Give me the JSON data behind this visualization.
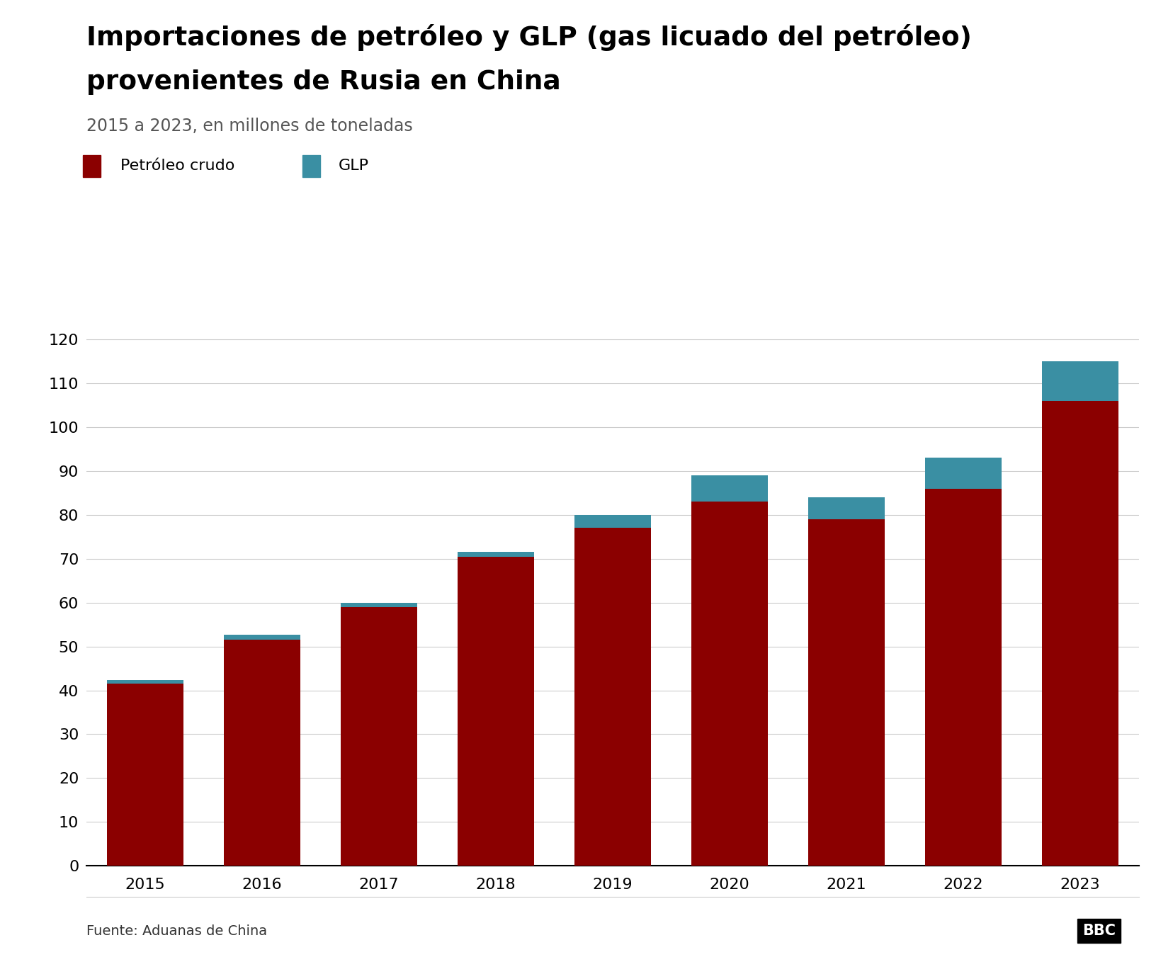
{
  "years": [
    "2015",
    "2016",
    "2017",
    "2018",
    "2019",
    "2020",
    "2021",
    "2022",
    "2023"
  ],
  "crude_oil": [
    41.5,
    51.5,
    59.0,
    70.5,
    77.0,
    83.0,
    79.0,
    86.0,
    106.0
  ],
  "glp": [
    0.8,
    1.2,
    1.0,
    1.0,
    3.0,
    6.0,
    5.0,
    7.0,
    9.0
  ],
  "crude_color": "#8B0000",
  "glp_color": "#3A8FA3",
  "title_line1": "Importaciones de petróleo y GLP (gas licuado del petróleo)",
  "title_line2": "provenientes de Rusia en China",
  "subtitle": "2015 a 2023, en millones de toneladas",
  "legend_crude": "Petróleo crudo",
  "legend_glp": "GLP",
  "ylabel_ticks": [
    0,
    10,
    20,
    30,
    40,
    50,
    60,
    70,
    80,
    90,
    100,
    110,
    120
  ],
  "ylim": [
    0,
    125
  ],
  "source": "Fuente: Aduanas de China",
  "bbc_text": "BBC",
  "background_color": "#FFFFFF",
  "title_fontsize": 27,
  "subtitle_fontsize": 17,
  "tick_fontsize": 16,
  "legend_fontsize": 16,
  "source_fontsize": 14
}
